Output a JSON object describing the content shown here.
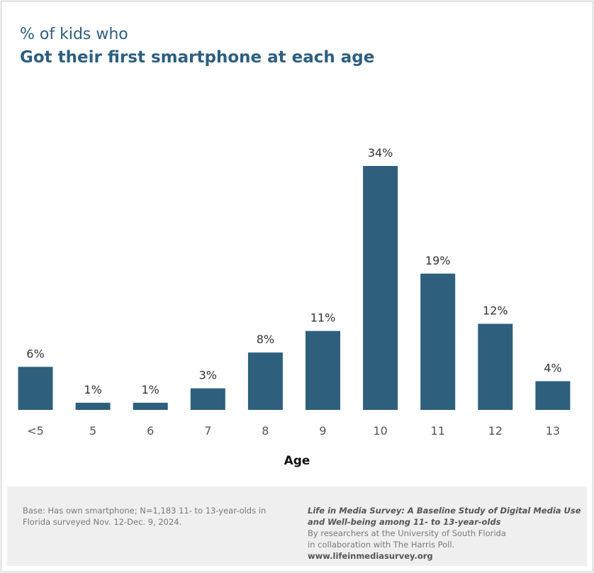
{
  "chart_data": {
    "type": "bar",
    "title_line1": "% of kids who",
    "title_line2": "Got their first smartphone at each age",
    "xlabel": "Age",
    "ylabel": "",
    "categories": [
      "<5",
      "5",
      "6",
      "7",
      "8",
      "9",
      "10",
      "11",
      "12",
      "13"
    ],
    "values": [
      6,
      1,
      1,
      3,
      8,
      11,
      34,
      19,
      12,
      4
    ],
    "value_labels": [
      "6%",
      "1%",
      "1%",
      "3%",
      "8%",
      "11%",
      "34%",
      "19%",
      "12%",
      "4%"
    ],
    "ylim": [
      0,
      34
    ],
    "grid": false,
    "bar_color": "#2e5f7d"
  },
  "footer": {
    "base_note": "Base: Has own smartphone; N=1,183 11- to 13-year-olds in Florida surveyed Nov. 12-Dec. 9, 2024.",
    "study_title": "Life in Media Survey: A Baseline Study of Digital Media Use and Well-being among 11- to 13-year-olds",
    "researchers": "By researchers at the University of South Florida",
    "collaboration": "in collaboration with The Harris Poll.",
    "url": "www.lifeinmediasurvey.org"
  }
}
